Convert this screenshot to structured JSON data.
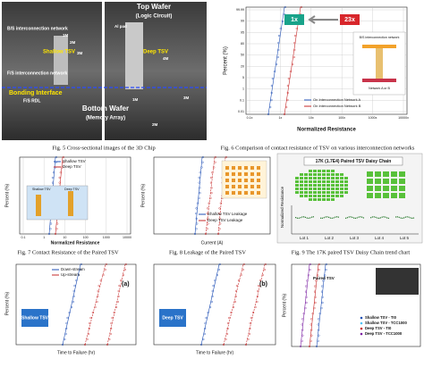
{
  "fig5": {
    "caption": "Fig. 5 Cross-sectional images of the 3D Chip",
    "top_wafer": "Top Wafer",
    "top_wafer_sub": "(Logic Circuit)",
    "bs_network": "B/S interconnection network",
    "shallow_tsv": "Shallow TSV",
    "deep_tsv": "Deep TSV",
    "fs_network": "F/S interconnection network",
    "bonding_interface": "Bonding Interface",
    "fs_rdl": "F/S RDL",
    "bottom_wafer": "Bottom Wafer",
    "bottom_wafer_sub": "(Memory Array)",
    "layers": [
      "1M",
      "2M",
      "3M",
      "Al pad",
      "4M",
      "1M",
      "2M",
      "3M"
    ]
  },
  "fig6": {
    "caption": "Fig. 6 Comparison of contact resistance of TSV on various interconnection networks",
    "y_label": "Percent (%)",
    "x_label": "Normalized Resistance",
    "y_ticks": [
      "99.99",
      "99",
      "95",
      "80",
      "50",
      "20",
      "5",
      "1",
      "0.1",
      "0.01"
    ],
    "x_ticks": [
      "0.1x",
      "1x",
      "10x",
      "100x",
      "1000x",
      "10000x"
    ],
    "ratio_a": "1x",
    "ratio_b": "23x",
    "legend": [
      "On Interconnection Network A",
      "On Interconnection Network B"
    ],
    "inset_label": "B/S interconnection network",
    "inset_sub": "Network A or B"
  },
  "fig7": {
    "caption": "Fig. 7 Contact Resistance of the Paired TSV",
    "legend": [
      "Shallow TSV",
      "Deep TSV"
    ],
    "x_label": "Normalized Resistance",
    "y_label": "Percent (%)",
    "inset": [
      "Shallow TSV",
      "Deep TSV"
    ],
    "x_ticks": [
      "0.1",
      "1",
      "10",
      "100",
      "1000",
      "10000"
    ]
  },
  "fig8": {
    "caption": "Fig. 8 Leakage of the Paired TSV",
    "legend": [
      "Shallow TSV Leakage",
      "Deep TSV Leakage"
    ],
    "x_label": "Current (A)",
    "y_label": "Percent (%)"
  },
  "fig9": {
    "caption": "Fig. 9 The 17K paired TSV Daisy Chain trend chart",
    "title": "17K (1.7E4) Paired TSV Daisy Chain",
    "y_label": "Normalized Resistance",
    "lots": [
      "Lot 1",
      "Lot 2",
      "Lot 3",
      "Lot 4",
      "Lot 5"
    ]
  },
  "fig10": {
    "legend": [
      "Down-stream",
      "Up-stream"
    ],
    "panels": [
      "(a)",
      "(b)"
    ],
    "tsv": [
      "Shallow TSV",
      "Deep TSV"
    ],
    "x_label": "Time to Failure (hr)",
    "y_label": "Percent (%)"
  },
  "fig11": {
    "legend": [
      "Shallow TSV - TI0",
      "Shallow TSV - TCC1000",
      "Deep TSV - TI0",
      "Deep TSV - TCC1000"
    ],
    "paired": "Paired TSV",
    "y_label": "Percent (%)"
  }
}
